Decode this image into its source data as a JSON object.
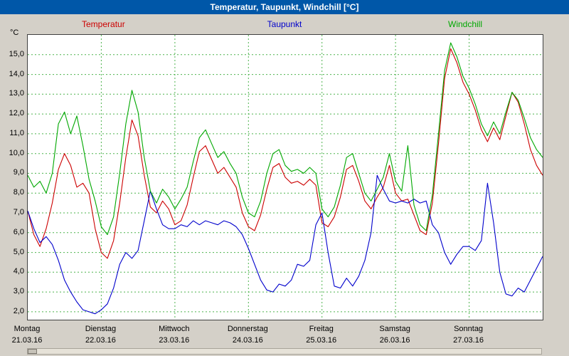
{
  "window": {
    "title": "Temperatur, Taupunkt, Windchill [°C]",
    "titlebar_color": "#0057a8"
  },
  "chart_data": {
    "type": "line",
    "title": "Temperatur, Taupunkt, Windchill [°C]",
    "ylabel": "°C",
    "ylim": [
      1.6,
      16.0
    ],
    "yticks": [
      15,
      14,
      13,
      12,
      11,
      10,
      9,
      8,
      7,
      6,
      5,
      4,
      3,
      2
    ],
    "ytick_labels": [
      "15,0",
      "14,0",
      "13,0",
      "12,0",
      "11,0",
      "10,0",
      "9,0",
      "8,0",
      "7,0",
      "6,0",
      "5,0",
      "4,0",
      "3,0",
      "2,0"
    ],
    "grid": "dashed",
    "grid_color": "#4db34d",
    "legend_position": "top",
    "x_days": [
      {
        "name": "Montag",
        "date": "21.03.16"
      },
      {
        "name": "Dienstag",
        "date": "22.03.16"
      },
      {
        "name": "Mittwoch",
        "date": "23.03.16"
      },
      {
        "name": "Donnerstag",
        "date": "24.03.16"
      },
      {
        "name": "Freitag",
        "date": "25.03.16"
      },
      {
        "name": "Samstag",
        "date": "26.03.16"
      },
      {
        "name": "Sonntag",
        "date": "27.03.16"
      }
    ],
    "points_per_day": 12,
    "series": [
      {
        "name": "Temperatur",
        "color": "#cc0000",
        "values": [
          7.1,
          5.9,
          5.3,
          6.2,
          7.5,
          9.2,
          10.0,
          9.4,
          8.3,
          8.5,
          8.0,
          6.2,
          5.0,
          4.7,
          5.6,
          7.5,
          9.8,
          11.7,
          10.9,
          8.9,
          7.3,
          7.0,
          7.6,
          7.2,
          6.4,
          6.6,
          7.4,
          8.8,
          10.1,
          10.4,
          9.7,
          9.0,
          9.3,
          8.8,
          8.3,
          7.0,
          6.3,
          6.1,
          6.9,
          8.2,
          9.3,
          9.5,
          8.8,
          8.5,
          8.6,
          8.4,
          8.7,
          8.4,
          6.5,
          6.3,
          6.8,
          7.8,
          9.2,
          9.4,
          8.6,
          7.6,
          7.2,
          7.8,
          8.3,
          9.4,
          8.0,
          7.6,
          7.7,
          6.9,
          6.1,
          5.9,
          7.5,
          10.5,
          13.8,
          15.3,
          14.6,
          13.6,
          13.0,
          12.2,
          11.2,
          10.6,
          11.3,
          10.7,
          11.9,
          13.1,
          12.6,
          11.5,
          10.2,
          9.4,
          8.9
        ]
      },
      {
        "name": "Taupunkt",
        "color": "#0000cc",
        "values": [
          7.1,
          6.2,
          5.5,
          5.8,
          5.4,
          4.6,
          3.6,
          3.0,
          2.5,
          2.1,
          2.0,
          1.9,
          2.1,
          2.4,
          3.2,
          4.4,
          5.0,
          4.7,
          5.1,
          6.6,
          8.1,
          7.2,
          6.4,
          6.2,
          6.2,
          6.4,
          6.3,
          6.6,
          6.4,
          6.6,
          6.5,
          6.4,
          6.6,
          6.5,
          6.3,
          5.9,
          5.2,
          4.4,
          3.6,
          3.1,
          3.0,
          3.4,
          3.3,
          3.6,
          4.4,
          4.3,
          4.6,
          6.4,
          7.0,
          5.0,
          3.3,
          3.2,
          3.7,
          3.3,
          3.8,
          4.6,
          6.0,
          8.9,
          8.2,
          7.6,
          7.5,
          7.6,
          7.5,
          7.7,
          7.5,
          7.6,
          6.4,
          6.0,
          5.0,
          4.4,
          4.9,
          5.3,
          5.3,
          5.1,
          5.6,
          8.5,
          6.5,
          4.0,
          2.9,
          2.8,
          3.2,
          3.0,
          3.6,
          4.2,
          4.8
        ]
      },
      {
        "name": "Windchill",
        "color": "#00a800",
        "values": [
          8.9,
          8.3,
          8.6,
          8.0,
          9.0,
          11.5,
          12.1,
          11.0,
          11.9,
          10.4,
          8.7,
          7.6,
          6.3,
          5.9,
          6.8,
          9.0,
          11.5,
          13.2,
          12.1,
          9.8,
          8.1,
          7.5,
          8.2,
          7.8,
          7.2,
          7.7,
          8.3,
          9.6,
          10.8,
          11.2,
          10.5,
          9.8,
          10.1,
          9.5,
          9.0,
          7.8,
          7.0,
          6.8,
          7.6,
          9.0,
          10.0,
          10.2,
          9.4,
          9.1,
          9.2,
          9.0,
          9.3,
          9.0,
          7.2,
          6.8,
          7.3,
          8.4,
          9.8,
          10.0,
          9.0,
          8.0,
          7.6,
          8.2,
          8.8,
          10.0,
          8.6,
          8.1,
          10.4,
          7.4,
          6.4,
          6.1,
          7.9,
          11.0,
          14.2,
          15.6,
          14.9,
          13.9,
          13.3,
          12.5,
          11.5,
          10.9,
          11.6,
          11.0,
          12.1,
          13.1,
          12.7,
          11.8,
          10.8,
          10.2,
          9.8
        ]
      }
    ]
  }
}
